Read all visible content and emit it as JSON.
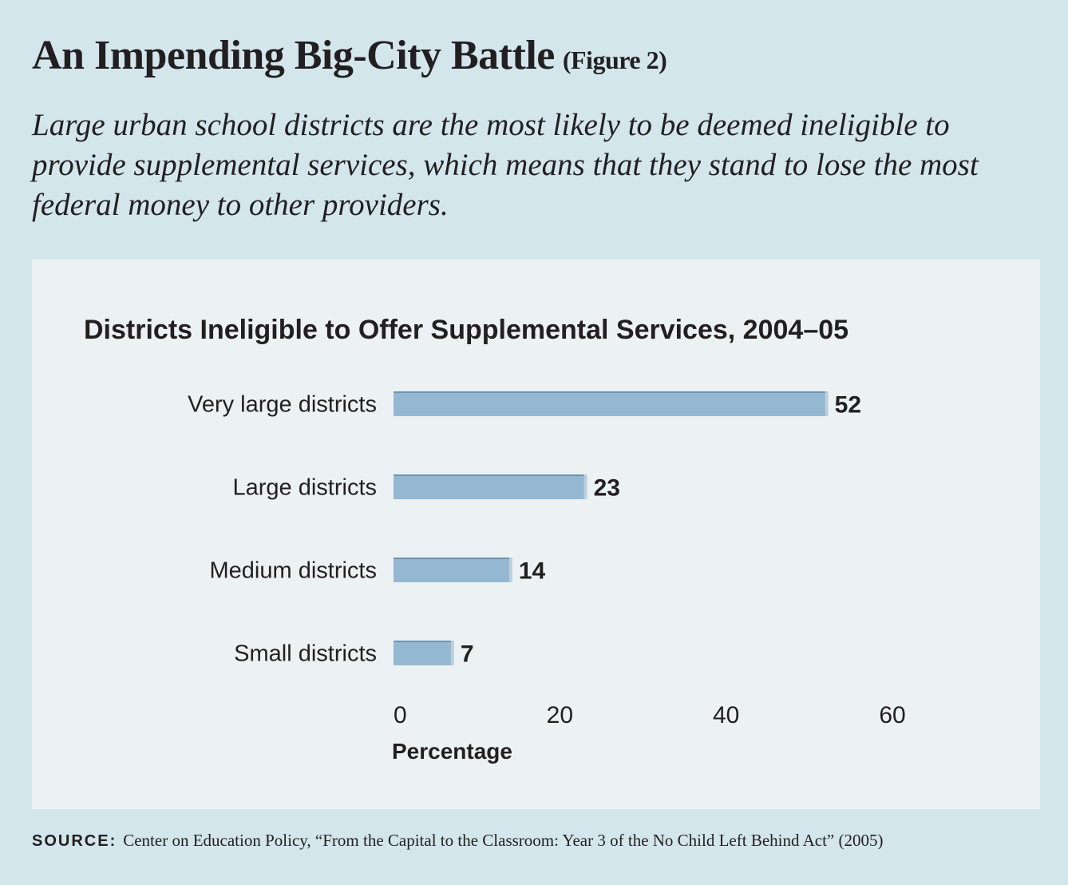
{
  "title": "An Impending Big-City Battle",
  "figure_label": "(Figure 2)",
  "subtitle": "Large urban school districts are the most likely to be deemed ineligible to provide supplemental services, which means that they stand to lose the most federal money to other providers.",
  "source": {
    "label": "SOURCE:",
    "text": "Center on Education Policy, “From the Capital to the Classroom: Year 3 of the No Child Left Behind Act” (2005)"
  },
  "colors": {
    "background": "#d3e6ec",
    "panel": "#ecf1f3",
    "bar": "#94b8d1",
    "bar_edge": "#6e94b0"
  },
  "chart_data": {
    "type": "bar",
    "orientation": "horizontal",
    "title": "Districts Ineligible to Offer Supplemental Services, 2004–05",
    "categories": [
      "Very large districts",
      "Large districts",
      "Medium districts",
      "Small districts"
    ],
    "values": [
      52,
      23,
      14,
      7
    ],
    "xlabel": "Percentage",
    "ylabel": "",
    "xlim": [
      0,
      60
    ],
    "xticks": [
      0,
      20,
      40,
      60
    ],
    "grid": false,
    "data_labels": true
  }
}
